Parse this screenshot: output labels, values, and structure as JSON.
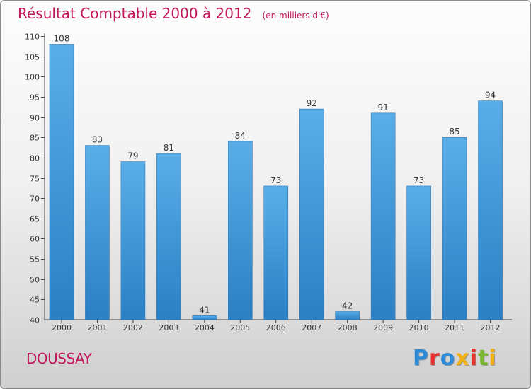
{
  "header": {
    "title": "Résultat Comptable 2000 à 2012",
    "unit": "(en milliers d'€)"
  },
  "footer": {
    "town": "DOUSSAY",
    "logo": "Proxiti",
    "logo_colors": [
      "#2c8ad6",
      "#e2342d",
      "#2c8ad6",
      "#f2b114",
      "#e2342d",
      "#7cb82f",
      "#f2b114"
    ]
  },
  "chart_data": {
    "type": "bar",
    "title": "Résultat Comptable 2000 à 2012",
    "subtitle": "(en milliers d'€)",
    "categories": [
      "2000",
      "2001",
      "2002",
      "2003",
      "2004",
      "2005",
      "2006",
      "2007",
      "2008",
      "2009",
      "2010",
      "2011",
      "2012"
    ],
    "values": [
      108,
      83,
      79,
      81,
      41,
      84,
      73,
      92,
      42,
      91,
      73,
      85,
      94
    ],
    "ylim": [
      40,
      110
    ],
    "yticks": [
      40,
      45,
      50,
      55,
      60,
      65,
      70,
      75,
      80,
      85,
      90,
      95,
      100,
      105,
      110
    ],
    "grid": false,
    "legend": "none",
    "bar_color_top": "#5aaee8",
    "bar_color_bottom": "#2a7fc4"
  }
}
